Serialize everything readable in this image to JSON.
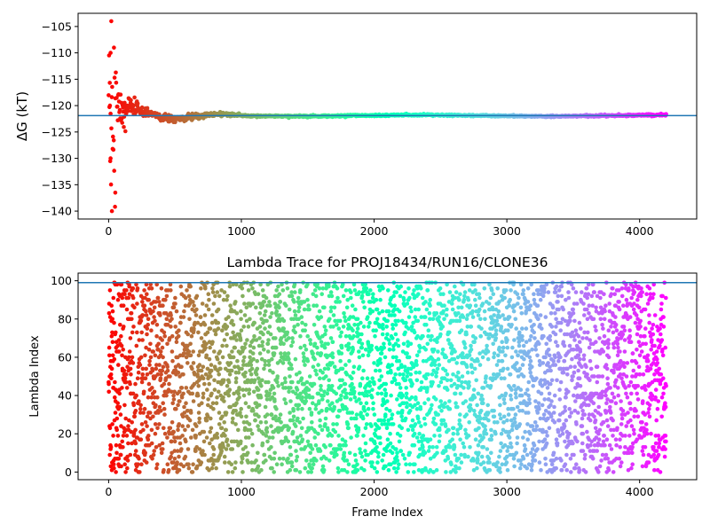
{
  "figure": {
    "background": "#ffffff",
    "axis_color": "#000000",
    "ref_line_color": "#1f77b4",
    "colormap": "rainbow"
  },
  "chart_data": [
    {
      "type": "scatter",
      "title": "",
      "xlabel": "",
      "ylabel": "ΔG (kT)",
      "xlim": [
        -230,
        4430
      ],
      "ylim": [
        -141.5,
        -102.5
      ],
      "xticks": [
        0,
        1000,
        2000,
        3000,
        4000
      ],
      "yticks": [
        -140,
        -135,
        -130,
        -125,
        -120,
        -115,
        -110,
        -105
      ],
      "reference_line": {
        "orientation": "horizontal",
        "value": -121.9
      },
      "n_points": 1400,
      "x_range": [
        0,
        4200
      ],
      "color_encoding": "frame index (rainbow, red at start to violet at end)",
      "series_description": "running free-energy estimate; large scatter early (about -140 to -104) converging to about -122 by frame 1000",
      "sample_points": [
        {
          "x": 20,
          "y": -104
        },
        {
          "x": 15,
          "y": -110
        },
        {
          "x": 40,
          "y": -109
        },
        {
          "x": 10,
          "y": -120
        },
        {
          "x": 15,
          "y": -130
        },
        {
          "x": 25,
          "y": -140
        },
        {
          "x": 50,
          "y": -136.5
        },
        {
          "x": 100,
          "y": -120
        },
        {
          "x": 150,
          "y": -123
        },
        {
          "x": 300,
          "y": -122.5
        },
        {
          "x": 500,
          "y": -123.5
        },
        {
          "x": 700,
          "y": -121
        },
        {
          "x": 1000,
          "y": -122
        },
        {
          "x": 2000,
          "y": -122.1
        },
        {
          "x": 3000,
          "y": -121.9
        },
        {
          "x": 4200,
          "y": -121.9
        }
      ]
    },
    {
      "type": "scatter",
      "title": "Lambda Trace for PROJ18434/RUN16/CLONE36",
      "xlabel": "Frame Index",
      "ylabel": "Lambda Index",
      "xlim": [
        -230,
        4430
      ],
      "ylim": [
        -4,
        104
      ],
      "xticks": [
        0,
        1000,
        2000,
        3000,
        4000
      ],
      "yticks": [
        0,
        20,
        40,
        60,
        80,
        100
      ],
      "reference_line": {
        "orientation": "horizontal",
        "value": 99
      },
      "n_points": 4200,
      "x_range": [
        0,
        4200
      ],
      "y_range": [
        0,
        99
      ],
      "color_encoding": "frame index (rainbow, red at start to violet at end)",
      "series_description": "one lambda index (integer 0 to 99) sampled per frame, visiting the full range uniformly"
    }
  ]
}
